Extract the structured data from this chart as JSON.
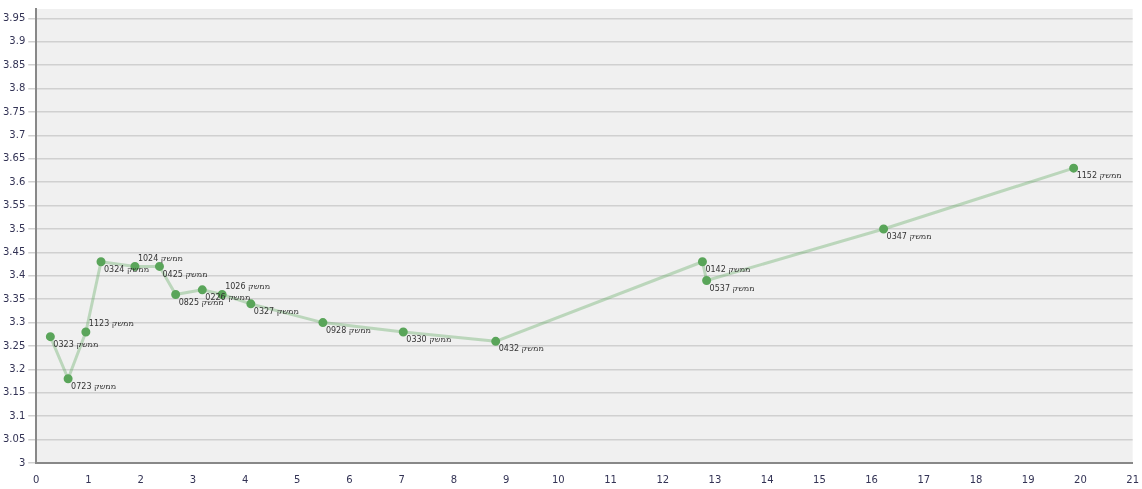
{
  "chart_data": {
    "type": "line",
    "x": [
      0.27,
      0.61,
      0.95,
      1.24,
      1.89,
      2.36,
      2.67,
      3.18,
      3.56,
      4.11,
      5.49,
      7.03,
      8.8,
      12.76,
      12.84,
      16.23,
      19.87
    ],
    "series": [
      {
        "color": "#5aa55a",
        "values": [
          3.27,
          3.18,
          3.28,
          3.43,
          3.42,
          3.42,
          3.36,
          3.37,
          3.36,
          3.34,
          3.3,
          3.28,
          3.26,
          3.43,
          3.39,
          3.5,
          3.63
        ],
        "value_labels": [
          "ממשק 0323",
          "ממשק 0723",
          "ממשק 1123",
          "ממשק 0324",
          "ממשק 1024",
          "ממשק 0425",
          "ממשק 0825",
          "ממשק 0226",
          "ממשק 1026",
          "ממשק 0327",
          "ממשק 0928",
          "ממשק 0330",
          "ממשק 0432",
          "ממשק 0142",
          "ממשק 0537",
          "ממשק 0347",
          "ממשק 1152"
        ]
      }
    ],
    "xlim": [
      0,
      21
    ],
    "xticks": [
      0,
      1,
      2,
      3,
      4,
      5,
      6,
      7,
      8,
      9,
      10,
      11,
      12,
      13,
      14,
      15,
      16,
      17,
      18,
      19,
      20,
      21
    ],
    "ylim": [
      3,
      3.97
    ],
    "yticks": [
      3,
      3.05,
      3.1,
      3.15,
      3.2,
      3.25,
      3.3,
      3.35,
      3.4,
      3.45,
      3.5,
      3.55,
      3.6,
      3.65,
      3.7,
      3.75,
      3.8,
      3.85,
      3.9,
      3.95
    ],
    "grid": "y",
    "legend": false,
    "marker": "circle",
    "line_style": "solid"
  }
}
